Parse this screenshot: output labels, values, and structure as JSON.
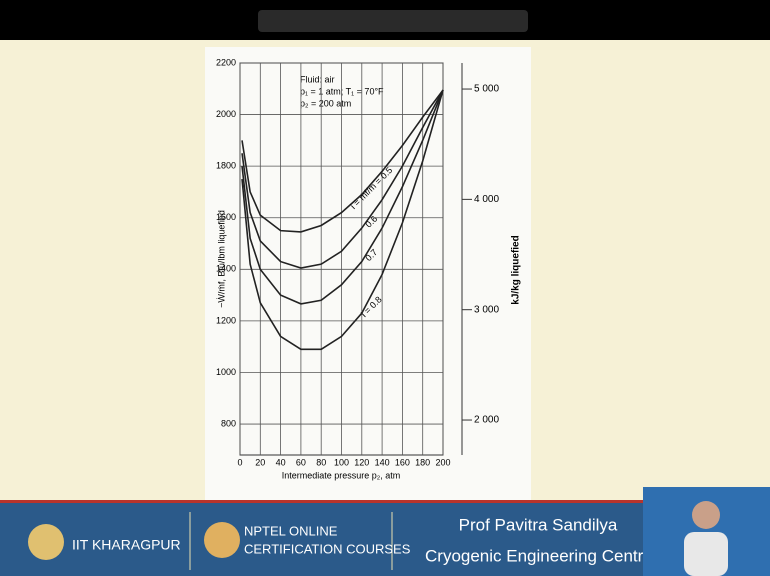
{
  "chart_data": {
    "type": "line",
    "annotations": [
      "Fluid: air",
      "p₁ = 1 atm; T₁ = 70°F",
      "p₂ = 200 atm"
    ],
    "x_label": "Intermediate pressure p₂, atm",
    "y_label": "−Ẇ/ṁf, Btu/lbm liquefied",
    "y2_label": "kJ/kg liquefied",
    "x": [
      2,
      10,
      20,
      40,
      60,
      80,
      100,
      120,
      140,
      160,
      180,
      200
    ],
    "series": [
      {
        "name": "i = ṁf/ṁ = 0.5",
        "color": "#222222",
        "values": [
          1900,
          1700,
          1610,
          1550,
          1545,
          1570,
          1620,
          1690,
          1780,
          1880,
          1990,
          2095
        ]
      },
      {
        "name": "0.6",
        "color": "#222222",
        "values": [
          1850,
          1620,
          1510,
          1430,
          1405,
          1420,
          1470,
          1560,
          1670,
          1800,
          1950,
          2095
        ]
      },
      {
        "name": "0.7",
        "color": "#222222",
        "values": [
          1800,
          1520,
          1400,
          1300,
          1266,
          1280,
          1340,
          1430,
          1560,
          1720,
          1900,
          2095
        ]
      },
      {
        "name": "i = 0.8",
        "color": "#222222",
        "values": [
          1750,
          1420,
          1270,
          1140,
          1090,
          1090,
          1140,
          1230,
          1380,
          1580,
          1820,
          2095
        ]
      }
    ],
    "xlim": [
      0,
      200
    ],
    "xticks": [
      0,
      20,
      40,
      60,
      80,
      100,
      120,
      140,
      160,
      180,
      200
    ],
    "ylim": [
      680,
      2200
    ],
    "yticks": [
      800,
      1000,
      1200,
      1400,
      1600,
      1800,
      2000,
      2200
    ],
    "y2lim": [
      1683,
      5236
    ],
    "y2ticks": [
      {
        "value": 2000,
        "label": "2 000"
      },
      {
        "value": 3000,
        "label": "3 000"
      },
      {
        "value": 4000,
        "label": "4 000"
      },
      {
        "value": 5000,
        "label": "5 000"
      }
    ],
    "grid": true
  },
  "footer": {
    "institute": "IIT KHARAGPUR",
    "nptel_line1": "NPTEL ONLINE",
    "nptel_line2": "CERTIFICATION COURSES",
    "presenter": "Prof Pavitra Sandilya",
    "course": "Cryogenic Engineering Centre"
  }
}
